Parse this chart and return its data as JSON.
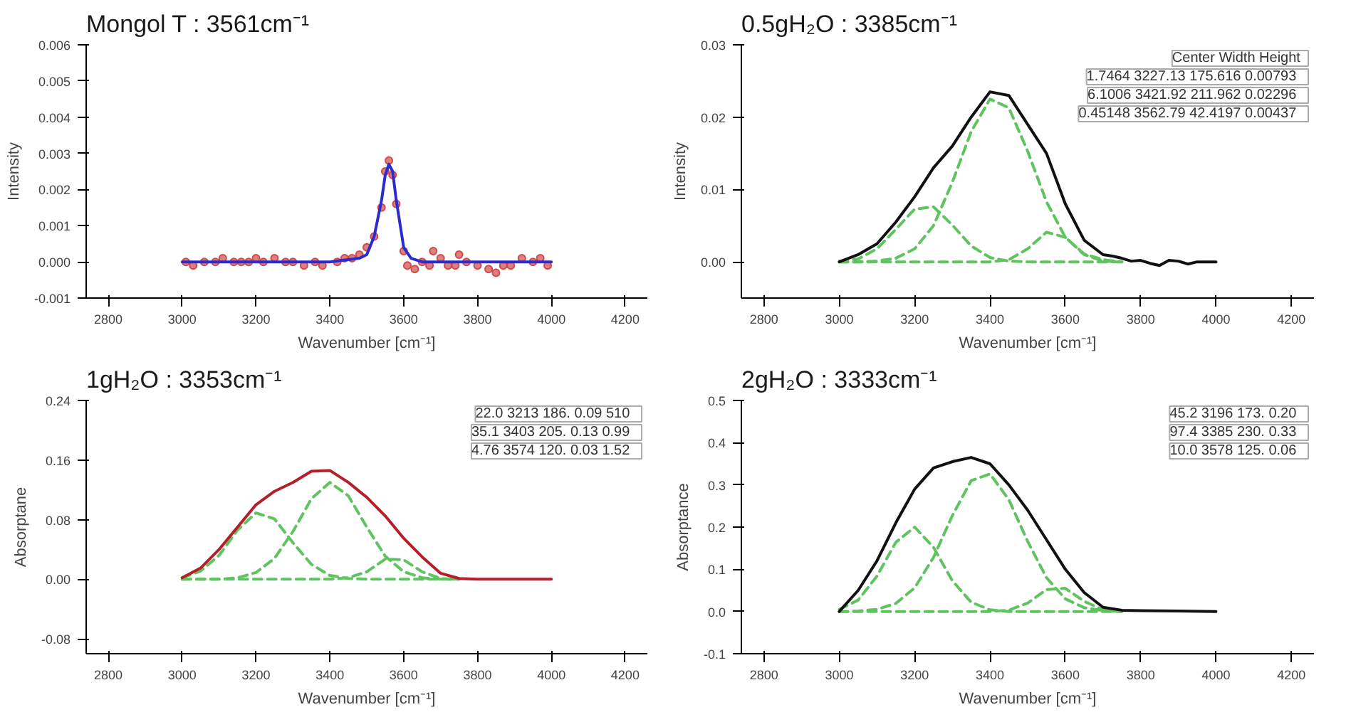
{
  "chart_data": [
    {
      "type": "line",
      "title": "Mongol T : 3561cm⁻¹",
      "xlabel": "Wavenumber [cm⁻¹]",
      "ylabel": "Intensity",
      "xlim": [
        2740,
        4260
      ],
      "xticks": [
        2800,
        3000,
        3200,
        3400,
        3600,
        3800,
        4000,
        4200
      ],
      "ylim": [
        -0.001,
        0.006
      ],
      "yticks": [
        {
          "value": -0.001,
          "label": "-0.001"
        },
        {
          "value": 0,
          "label": "0.000"
        },
        {
          "value": 0.001,
          "label": "0.001"
        },
        {
          "value": 0.002,
          "label": "0.002"
        },
        {
          "value": 0.003,
          "label": "0.003"
        },
        {
          "value": 0.004,
          "label": "0.004"
        },
        {
          "value": 0.005,
          "label": "0.005"
        },
        {
          "value": 0.006,
          "label": "0.006"
        }
      ],
      "grid": false,
      "series": [
        {
          "type": "scatter",
          "marker": "circle",
          "color": "#d04848",
          "x": [
            3010,
            3030,
            3060,
            3090,
            3110,
            3140,
            3160,
            3180,
            3200,
            3220,
            3250,
            3280,
            3300,
            3330,
            3360,
            3380,
            3420,
            3440,
            3460,
            3480,
            3500,
            3520,
            3540,
            3550,
            3560,
            3570,
            3580,
            3600,
            3610,
            3630,
            3650,
            3670,
            3680,
            3700,
            3720,
            3740,
            3750,
            3770,
            3800,
            3830,
            3850,
            3870,
            3890,
            3920,
            3950,
            3970,
            3990
          ],
          "values": [
            0.0,
            -0.0001,
            0.0,
            0.0,
            0.0001,
            0.0,
            0.0,
            0.0,
            0.0001,
            0.0,
            0.0001,
            0.0,
            0.0,
            -0.0001,
            0.0,
            -0.0001,
            0.0,
            0.0001,
            0.0001,
            0.0002,
            0.0004,
            0.0007,
            0.0015,
            0.0025,
            0.0028,
            0.0024,
            0.0016,
            0.0003,
            -0.0001,
            -0.0002,
            0.0,
            -0.0001,
            0.0003,
            0.0001,
            -0.0001,
            -0.0001,
            0.0002,
            0.0,
            -0.0001,
            -0.0002,
            -0.0003,
            -0.0001,
            -0.0001,
            0.0001,
            0.0,
            0.0001,
            -0.0001
          ]
        },
        {
          "type": "line",
          "line_style": "solid",
          "color": "#2b2bcf",
          "x": [
            3000,
            3400,
            3480,
            3500,
            3520,
            3540,
            3550,
            3560,
            3570,
            3580,
            3600,
            3620,
            3650,
            4000
          ],
          "values": [
            0,
            0,
            0.0001,
            0.0002,
            0.0007,
            0.0017,
            0.0024,
            0.0027,
            0.0025,
            0.0017,
            0.0004,
            0.0001,
            0,
            0
          ]
        }
      ]
    },
    {
      "type": "line",
      "title": "0.5gH₂O : 3385cm⁻¹",
      "xlabel": "Wavenumber [cm⁻¹]",
      "ylabel": "Intensity",
      "xlim": [
        2740,
        4260
      ],
      "xticks": [
        2800,
        3000,
        3200,
        3400,
        3600,
        3800,
        4000,
        4200
      ],
      "ylim": [
        -0.005,
        0.03
      ],
      "yticks": [
        {
          "value": 0,
          "label": "0.00"
        },
        {
          "value": 0.01,
          "label": "0.01"
        },
        {
          "value": 0.02,
          "label": "0.02"
        },
        {
          "value": 0.03,
          "label": "0.03"
        }
      ],
      "grid": false,
      "annotations": [
        "Center  Width  Height",
        "1.7464  3227.13  175.616  0.00793",
        "6.1006  3421.92  211.962  0.02296",
        "0.45148  3562.79  42.4197  0.00437"
      ],
      "series": [
        {
          "type": "line",
          "line_style": "dashed",
          "color": "#5fc45f",
          "x": [
            3000,
            3050,
            3100,
            3150,
            3200,
            3250,
            3300,
            3350,
            3400,
            3450,
            3500,
            3550,
            3600,
            3650,
            3700,
            3750
          ],
          "values": [
            0.0001,
            0.0004,
            0.0018,
            0.0045,
            0.0073,
            0.0076,
            0.0051,
            0.0022,
            0.0006,
            0.0001,
            0,
            0,
            0,
            0,
            0,
            0
          ]
        },
        {
          "type": "line",
          "line_style": "dashed",
          "color": "#5fc45f",
          "x": [
            3000,
            3050,
            3100,
            3150,
            3200,
            3250,
            3300,
            3350,
            3400,
            3450,
            3500,
            3550,
            3600,
            3650,
            3700,
            3750
          ],
          "values": [
            0,
            0,
            0.0001,
            0.0005,
            0.0018,
            0.005,
            0.011,
            0.018,
            0.0225,
            0.0213,
            0.0153,
            0.0083,
            0.0034,
            0.0011,
            0.0003,
            0
          ]
        },
        {
          "type": "line",
          "line_style": "dashed",
          "color": "#5fc45f",
          "x": [
            3000,
            3050,
            3100,
            3150,
            3200,
            3250,
            3300,
            3350,
            3400,
            3450,
            3500,
            3550,
            3600,
            3650,
            3700,
            3750
          ],
          "values": [
            0,
            0,
            0,
            0,
            0,
            0,
            0,
            0,
            0,
            0.0003,
            0.0018,
            0.0041,
            0.0034,
            0.001,
            0.0001,
            0
          ]
        },
        {
          "type": "line",
          "line_style": "solid",
          "color": "#111111",
          "x": [
            3000,
            3050,
            3100,
            3150,
            3200,
            3250,
            3300,
            3350,
            3400,
            3450,
            3500,
            3550,
            3600,
            3650,
            3700,
            3725,
            3750,
            3775,
            3800,
            3825,
            3850,
            3875,
            3900,
            3925,
            3950,
            4000
          ],
          "values": [
            0,
            0.001,
            0.0025,
            0.0055,
            0.009,
            0.013,
            0.016,
            0.02,
            0.0235,
            0.023,
            0.019,
            0.015,
            0.008,
            0.003,
            0.001,
            0.0008,
            0.0005,
            0.0001,
            0.0002,
            -0.0002,
            -0.0005,
            0.0002,
            0.0001,
            -0.0003,
            0,
            0
          ]
        }
      ]
    },
    {
      "type": "line",
      "title": "1gH₂O : 3353cm⁻¹",
      "xlabel": "Wavenumber [cm⁻¹]",
      "ylabel": "Absorptane",
      "xlim": [
        2740,
        4260
      ],
      "xticks": [
        2800,
        3000,
        3200,
        3400,
        3600,
        3800,
        4000,
        4200
      ],
      "ylim": [
        -0.1,
        0.24
      ],
      "yticks": [
        {
          "value": -0.08,
          "label": "-0.08"
        },
        {
          "value": 0,
          "label": "0.00"
        },
        {
          "value": 0.08,
          "label": "0.08"
        },
        {
          "value": 0.16,
          "label": "0.16"
        },
        {
          "value": 0.24,
          "label": "0.24"
        }
      ],
      "grid": false,
      "annotations": [
        "22.0 3213  186.  0.09  510",
        "35.1 3403  205.  0.13  0.99",
        "4.76 3574  120.  0.03  1.52"
      ],
      "series": [
        {
          "type": "line",
          "line_style": "dashed",
          "color": "#5fc45f",
          "x": [
            3000,
            3050,
            3100,
            3150,
            3200,
            3250,
            3300,
            3350,
            3400,
            3450,
            3500,
            3550,
            3600,
            3650,
            3700,
            3750
          ],
          "values": [
            0.002,
            0.011,
            0.032,
            0.066,
            0.089,
            0.081,
            0.049,
            0.02,
            0.005,
            0.001,
            0,
            0,
            0,
            0,
            0,
            0
          ]
        },
        {
          "type": "line",
          "line_style": "dashed",
          "color": "#5fc45f",
          "x": [
            3000,
            3050,
            3100,
            3150,
            3200,
            3250,
            3300,
            3350,
            3400,
            3450,
            3500,
            3550,
            3600,
            3650,
            3700,
            3750
          ],
          "values": [
            0,
            0,
            0,
            0.002,
            0.009,
            0.028,
            0.064,
            0.108,
            0.13,
            0.112,
            0.07,
            0.031,
            0.01,
            0.002,
            0,
            0
          ]
        },
        {
          "type": "line",
          "line_style": "dashed",
          "color": "#5fc45f",
          "x": [
            3000,
            3050,
            3100,
            3150,
            3200,
            3250,
            3300,
            3350,
            3400,
            3450,
            3500,
            3550,
            3600,
            3650,
            3700,
            3750
          ],
          "values": [
            0,
            0,
            0,
            0,
            0,
            0,
            0,
            0,
            0,
            0.002,
            0.01,
            0.027,
            0.026,
            0.01,
            0.001,
            0
          ]
        },
        {
          "type": "line",
          "line_style": "solid",
          "color": "#b3202a",
          "x": [
            3000,
            3050,
            3100,
            3150,
            3200,
            3250,
            3300,
            3350,
            3400,
            3450,
            3500,
            3550,
            3600,
            3650,
            3700,
            3750,
            3800,
            4000
          ],
          "values": [
            0.002,
            0.015,
            0.04,
            0.07,
            0.1,
            0.118,
            0.13,
            0.145,
            0.146,
            0.13,
            0.11,
            0.085,
            0.055,
            0.03,
            0.008,
            0.001,
            0,
            0
          ]
        }
      ]
    },
    {
      "type": "line",
      "title": "2gH₂O : 3333cm⁻¹",
      "xlabel": "Wavenumber [cm⁻¹]",
      "ylabel": "Absorptance",
      "xlim": [
        2740,
        4260
      ],
      "xticks": [
        2800,
        3000,
        3200,
        3400,
        3600,
        3800,
        4000,
        4200
      ],
      "ylim": [
        -0.1,
        0.5
      ],
      "yticks": [
        {
          "value": -0.1,
          "label": "-0.1"
        },
        {
          "value": 0,
          "label": "0.0"
        },
        {
          "value": 0.1,
          "label": "0.1"
        },
        {
          "value": 0.2,
          "label": "0.2"
        },
        {
          "value": 0.3,
          "label": "0.3"
        },
        {
          "value": 0.4,
          "label": "0.4"
        },
        {
          "value": 0.5,
          "label": "0.5"
        }
      ],
      "grid": false,
      "annotations": [
        "45.2  3196  173.  0.20",
        "97.4  3385  230.  0.33",
        "10.0  3578  125.  0.06"
      ],
      "series": [
        {
          "type": "line",
          "line_style": "dashed",
          "color": "#5fc45f",
          "x": [
            3000,
            3050,
            3100,
            3150,
            3200,
            3250,
            3300,
            3350,
            3400,
            3450,
            3500,
            3550,
            3600,
            3650,
            3700,
            3750
          ],
          "values": [
            0.005,
            0.027,
            0.084,
            0.164,
            0.2,
            0.152,
            0.073,
            0.022,
            0.004,
            0,
            0,
            0,
            0,
            0,
            0,
            0
          ]
        },
        {
          "type": "line",
          "line_style": "dashed",
          "color": "#5fc45f",
          "x": [
            3000,
            3050,
            3100,
            3150,
            3200,
            3250,
            3300,
            3350,
            3400,
            3450,
            3500,
            3550,
            3600,
            3650,
            3700,
            3750
          ],
          "values": [
            0,
            0.001,
            0.005,
            0.019,
            0.056,
            0.128,
            0.227,
            0.31,
            0.326,
            0.265,
            0.166,
            0.08,
            0.03,
            0.009,
            0.002,
            0
          ]
        },
        {
          "type": "line",
          "line_style": "dashed",
          "color": "#5fc45f",
          "x": [
            3000,
            3050,
            3100,
            3150,
            3200,
            3250,
            3300,
            3350,
            3400,
            3450,
            3500,
            3550,
            3600,
            3650,
            3700,
            3750
          ],
          "values": [
            0,
            0,
            0,
            0,
            0,
            0,
            0,
            0,
            0,
            0.003,
            0.02,
            0.052,
            0.055,
            0.024,
            0.004,
            0
          ]
        },
        {
          "type": "line",
          "line_style": "solid",
          "color": "#111111",
          "x": [
            3000,
            3050,
            3100,
            3150,
            3200,
            3250,
            3300,
            3350,
            3400,
            3450,
            3500,
            3550,
            3600,
            3650,
            3700,
            3750,
            3800,
            3900,
            4000
          ],
          "values": [
            0,
            0.05,
            0.12,
            0.21,
            0.29,
            0.34,
            0.355,
            0.365,
            0.35,
            0.3,
            0.24,
            0.17,
            0.1,
            0.045,
            0.01,
            0.003,
            0.002,
            0.001,
            0
          ]
        }
      ]
    }
  ]
}
